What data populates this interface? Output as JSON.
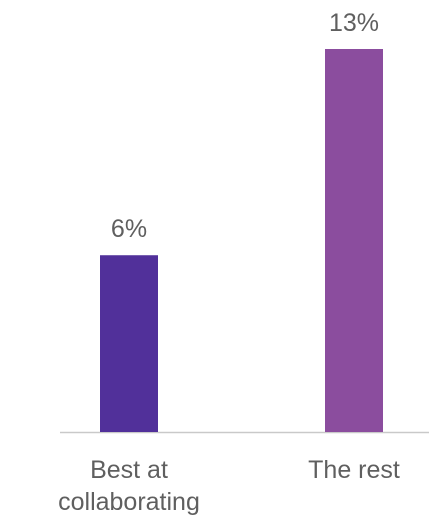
{
  "chart_data": {
    "type": "bar",
    "categories": [
      [
        "Best at",
        "collaborating"
      ],
      [
        "The rest"
      ]
    ],
    "values": [
      6,
      13
    ],
    "value_labels": [
      "6%",
      "13%"
    ],
    "bar_colors": [
      "#51309a",
      "#8b4d9e"
    ],
    "axis_color": "#c9c9c9",
    "text_color": "#5f5f5f",
    "ylim": [
      0,
      13
    ],
    "title": "",
    "xlabel": "",
    "ylabel": "",
    "grid": false,
    "legend": "none"
  }
}
